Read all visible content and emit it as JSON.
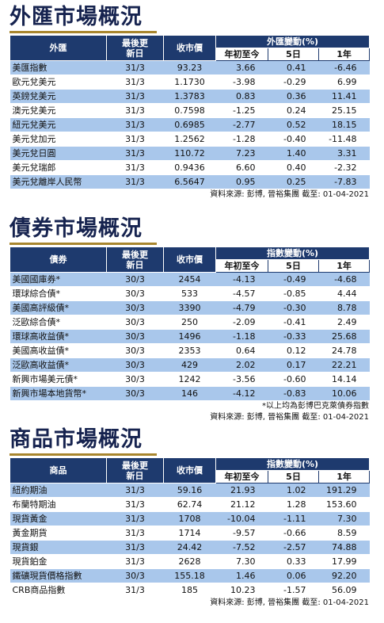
{
  "columns": {
    "date": "最後更新日",
    "close": "收市價",
    "ytd": "年初至今",
    "d5": "5日",
    "y1": "1年"
  },
  "fx": {
    "title": "外匯市場概況",
    "col_name": "外匯",
    "col_group": "外匯變動(%)",
    "rows": [
      {
        "name": "美匯指數",
        "date": "31/3",
        "close": "93.23",
        "ytd": "3.66",
        "d5": "0.41",
        "y1": "-6.46"
      },
      {
        "name": "歐元兌美元",
        "date": "31/3",
        "close": "1.1730",
        "ytd": "-3.98",
        "d5": "-0.29",
        "y1": "6.99"
      },
      {
        "name": "英鎊兌美元",
        "date": "31/3",
        "close": "1.3783",
        "ytd": "0.83",
        "d5": "0.36",
        "y1": "11.41"
      },
      {
        "name": "澳元兌美元",
        "date": "31/3",
        "close": "0.7598",
        "ytd": "-1.25",
        "d5": "0.24",
        "y1": "25.15"
      },
      {
        "name": "紐元兌美元",
        "date": "31/3",
        "close": "0.6985",
        "ytd": "-2.77",
        "d5": "0.52",
        "y1": "18.15"
      },
      {
        "name": "美元兌加元",
        "date": "31/3",
        "close": "1.2562",
        "ytd": "-1.28",
        "d5": "-0.40",
        "y1": "-11.48"
      },
      {
        "name": "美元兌日圓",
        "date": "31/3",
        "close": "110.72",
        "ytd": "7.23",
        "d5": "1.40",
        "y1": "3.31"
      },
      {
        "name": "美元兌瑞郎",
        "date": "31/3",
        "close": "0.9436",
        "ytd": "6.60",
        "d5": "0.40",
        "y1": "-2.32"
      },
      {
        "name": "美元兌離岸人民幣",
        "date": "31/3",
        "close": "6.5647",
        "ytd": "0.95",
        "d5": "0.25",
        "y1": "-7.83"
      }
    ],
    "source": "資料來源: 彭博, 晉裕集團 截至: 01-04-2021"
  },
  "bonds": {
    "title": "債券市場概況",
    "col_name": "債券",
    "col_group": "指數變動(%)",
    "rows": [
      {
        "name": "美國國庫券*",
        "date": "30/3",
        "close": "2454",
        "ytd": "-4.13",
        "d5": "-0.49",
        "y1": "-4.68"
      },
      {
        "name": "環球綜合債*",
        "date": "30/3",
        "close": "533",
        "ytd": "-4.57",
        "d5": "-0.85",
        "y1": "4.44"
      },
      {
        "name": "美國高評級債*",
        "date": "30/3",
        "close": "3390",
        "ytd": "-4.79",
        "d5": "-0.30",
        "y1": "8.78"
      },
      {
        "name": "泛歐綜合債*",
        "date": "30/3",
        "close": "250",
        "ytd": "-2.09",
        "d5": "-0.41",
        "y1": "2.49"
      },
      {
        "name": "環球高收益債*",
        "date": "30/3",
        "close": "1496",
        "ytd": "-1.18",
        "d5": "-0.33",
        "y1": "25.68"
      },
      {
        "name": "美國高收益債*",
        "date": "30/3",
        "close": "2353",
        "ytd": "0.64",
        "d5": "0.12",
        "y1": "24.78"
      },
      {
        "name": "泛歐高收益債*",
        "date": "30/3",
        "close": "429",
        "ytd": "2.02",
        "d5": "0.17",
        "y1": "22.21"
      },
      {
        "name": "新興市場美元債*",
        "date": "30/3",
        "close": "1242",
        "ytd": "-3.56",
        "d5": "-0.60",
        "y1": "14.14"
      },
      {
        "name": "新興市場本地貨幣*",
        "date": "30/3",
        "close": "146",
        "ytd": "-4.12",
        "d5": "-0.83",
        "y1": "10.06"
      }
    ],
    "footnote": "*以上均為彭博巴克萊債券指數",
    "source": "資料來源: 彭博, 晉裕集團 截至: 01-04-2021"
  },
  "commodities": {
    "title": "商品市場概況",
    "col_name": "商品",
    "col_group": "指數變動(%)",
    "rows": [
      {
        "name": "紐約期油",
        "date": "31/3",
        "close": "59.16",
        "ytd": "21.93",
        "d5": "1.02",
        "y1": "191.29"
      },
      {
        "name": "布蘭特期油",
        "date": "31/3",
        "close": "62.74",
        "ytd": "21.12",
        "d5": "1.28",
        "y1": "153.60"
      },
      {
        "name": "現貨黃金",
        "date": "31/3",
        "close": "1708",
        "ytd": "-10.04",
        "d5": "-1.11",
        "y1": "7.30"
      },
      {
        "name": "黃金期貨",
        "date": "31/3",
        "close": "1714",
        "ytd": "-9.57",
        "d5": "-0.66",
        "y1": "8.59"
      },
      {
        "name": "現貨銀",
        "date": "31/3",
        "close": "24.42",
        "ytd": "-7.52",
        "d5": "-2.57",
        "y1": "74.88"
      },
      {
        "name": "現貨鉑金",
        "date": "31/3",
        "close": "2628",
        "ytd": "7.30",
        "d5": "0.33",
        "y1": "17.99"
      },
      {
        "name": "鐵礦現貨價格指數",
        "date": "30/3",
        "close": "155.18",
        "ytd": "1.46",
        "d5": "0.06",
        "y1": "92.20"
      },
      {
        "name": "CRB商品指數",
        "date": "31/3",
        "close": "185",
        "ytd": "10.23",
        "d5": "-1.57",
        "y1": "56.09"
      }
    ],
    "source": "資料來源: 彭博, 晉裕集團 截至: 01-04-2021"
  }
}
